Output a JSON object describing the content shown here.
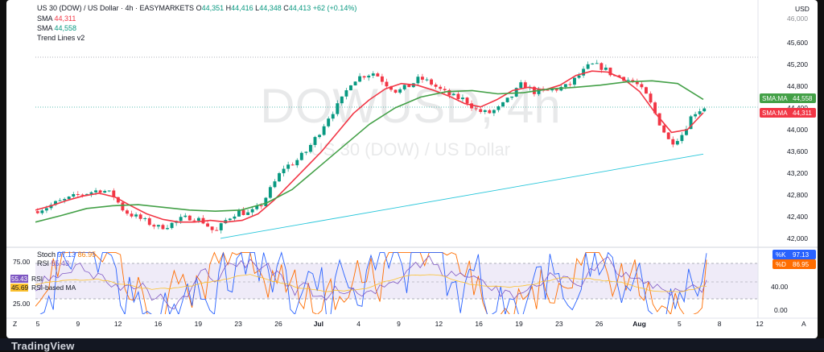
{
  "header": {
    "symbol_line": "US 30 (DOW) / US Dollar · 4h · EASYMARKETS",
    "open_label": "O",
    "open": "44,351",
    "high_label": "H",
    "high": "44,416",
    "low_label": "L",
    "low": "44,348",
    "close_label": "C",
    "close": "44,413",
    "change": "+62 (+0.14%)",
    "sma1_label": "SMA",
    "sma1_value": "44,311",
    "sma2_label": "SMA",
    "sma2_value": "44,558",
    "trend_label": "Trend Lines v2",
    "currency": "USD"
  },
  "watermark": {
    "big": "DOWUSD, 4h",
    "small": "US 30 (DOW) / US Dollar"
  },
  "price_axis": {
    "ticks": [
      "45,600",
      "45,200",
      "44,800",
      "44,400",
      "44,000",
      "43,600",
      "43,200",
      "42,800",
      "42,400",
      "42,000"
    ],
    "top_partial": "46,000"
  },
  "tags": {
    "sma_slow": {
      "label": "SMA:MA",
      "value": "44,558"
    },
    "sma_fast": {
      "label": "SMA:MA",
      "value": "44,311"
    },
    "stoch_k": {
      "label": "%K",
      "value": "97.13"
    },
    "stoch_d": {
      "label": "%D",
      "value": "86.95"
    }
  },
  "oscillator": {
    "stoch_label": "Stoch",
    "stoch_k": "97.13",
    "stoch_d": "86.95",
    "rsi_label": "RSI",
    "rsi_partial": "55.43",
    "rsi_value": "55.43",
    "rsi_tag": "RSI",
    "rsi_ma_value": "45.69",
    "rsi_ma_tag": "RSI-based MA",
    "left_ticks": [
      "75.00",
      "25.00"
    ],
    "right_ticks": [
      "80.00",
      "40.00",
      "0.00"
    ]
  },
  "time_axis": [
    "5",
    "9",
    "12",
    "16",
    "19",
    "23",
    "26",
    "Jul",
    "4",
    "9",
    "12",
    "16",
    "19",
    "23",
    "26",
    "Aug",
    "5",
    "8",
    "12"
  ],
  "branding": {
    "logo": "TradingView"
  },
  "colors": {
    "up": "#089981",
    "down": "#f23645",
    "sma_fast": "#f23645",
    "sma_slow": "#43a047",
    "trend": "#26c6da",
    "stoch_k": "#2962ff",
    "stoch_d": "#ff6d00",
    "rsi": "#7e57c2",
    "rsi_ma": "#fbc02d"
  },
  "chart_data": {
    "type": "candlestick",
    "title": "US 30 (DOW) / US Dollar · 4h · EASYMARKETS",
    "ylabel": "USD",
    "ylim": [
      41850,
      46150
    ],
    "x_labels": [
      "5",
      "9",
      "12",
      "16",
      "19",
      "23",
      "26",
      "Jul",
      "4",
      "9",
      "12",
      "16",
      "19",
      "23",
      "26",
      "Aug",
      "5",
      "8",
      "12"
    ],
    "close_path": [
      42500,
      42560,
      42650,
      42720,
      42800,
      42850,
      42900,
      42800,
      42500,
      42400,
      42300,
      42200,
      42250,
      42350,
      42400,
      42300,
      42100,
      42350,
      42500,
      42450,
      42600,
      42950,
      43300,
      43400,
      43600,
      43900,
      44250,
      44500,
      44900,
      45000,
      45050,
      44850,
      44700,
      44800,
      44950,
      44850,
      44700,
      44600,
      44550,
      44350,
      44300,
      44400,
      44600,
      44850,
      44700,
      44700,
      44750,
      44800,
      45000,
      45200,
      45150,
      45000,
      44950,
      44850,
      44600,
      44150,
      43750,
      43900,
      44300,
      44413
    ],
    "series": [
      {
        "name": "SMA",
        "last": 44311,
        "values": [
          42520,
          42600,
          42700,
          42780,
          42830,
          42760,
          42600,
          42450,
          42350,
          42300,
          42300,
          42330,
          42300,
          42330,
          42450,
          42700,
          43000,
          43300,
          43600,
          43950,
          44300,
          44550,
          44750,
          44850,
          44820,
          44730,
          44620,
          44480,
          44420,
          44550,
          44720,
          44780,
          44730,
          44820,
          45000,
          45080,
          45060,
          44930,
          44700,
          44300,
          43950,
          44000,
          44311
        ]
      },
      {
        "name": "SMA",
        "last": 44558,
        "values": [
          42300,
          42420,
          42550,
          42600,
          42620,
          42570,
          42520,
          42500,
          42520,
          42650,
          42900,
          43300,
          43700,
          44100,
          44400,
          44600,
          44700,
          44720,
          44660,
          44680,
          44750,
          44780,
          44820,
          44880,
          44900,
          44850,
          44558
        ]
      },
      {
        "name": "Trend Lines v2",
        "values": [
          42000,
          43550
        ]
      }
    ],
    "oscillators": {
      "stoch": {
        "k": 97.13,
        "d": 86.95,
        "levels": [
          80,
          20
        ]
      },
      "rsi": {
        "value": 55.43,
        "ma": 45.69
      },
      "ylim": [
        0,
        100
      ]
    }
  }
}
